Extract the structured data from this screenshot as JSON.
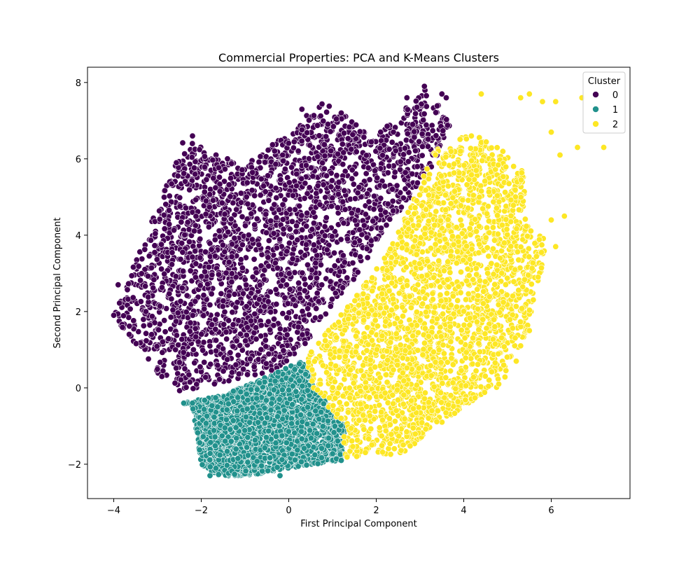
{
  "chart_data": {
    "type": "scatter",
    "title": "Commercial Properties: PCA and K-Means Clusters",
    "xlabel": "First Principal Component",
    "ylabel": "Second Principal Component",
    "xlim": [
      -4.6,
      7.8
    ],
    "ylim": [
      -2.9,
      8.4
    ],
    "xticks": [
      -4,
      -2,
      0,
      2,
      4,
      6
    ],
    "xtick_labels": [
      "−4",
      "−2",
      "0",
      "2",
      "4",
      "6"
    ],
    "yticks": [
      -2,
      0,
      2,
      4,
      6,
      8
    ],
    "ytick_labels": [
      "−2",
      "0",
      "2",
      "4",
      "6",
      "8"
    ],
    "grid": false,
    "legend": {
      "title": "Cluster",
      "placement": "top-right",
      "entries": [
        "0",
        "1",
        "2"
      ]
    },
    "colors": {
      "cluster_0": "#440154",
      "cluster_1": "#21918c",
      "cluster_2": "#fde725",
      "marker_edge": "#ffffff",
      "axes": "#000000"
    },
    "series": [
      {
        "name": "0",
        "color": "#440154",
        "region": [
          [
            -4.0,
            1.9
          ],
          [
            -3.0,
            4.8
          ],
          [
            -2.4,
            6.5
          ],
          [
            -1.0,
            5.8
          ],
          [
            0.8,
            7.5
          ],
          [
            2.0,
            6.6
          ],
          [
            3.2,
            7.9
          ],
          [
            3.7,
            6.9
          ],
          [
            3.2,
            5.6
          ],
          [
            2.5,
            4.6
          ],
          [
            1.6,
            3.0
          ],
          [
            0.6,
            1.5
          ],
          [
            0.2,
            0.7
          ],
          [
            -0.5,
            0.4
          ],
          [
            -2.5,
            -0.1
          ],
          [
            -3.0,
            0.3
          ]
        ],
        "outliers": [
          [
            -2.2,
            6.6
          ],
          [
            -1.4,
            6.0
          ],
          [
            0.3,
            7.3
          ],
          [
            1.2,
            7.2
          ],
          [
            2.1,
            6.7
          ],
          [
            2.7,
            7.6
          ],
          [
            3.1,
            7.9
          ],
          [
            3.5,
            7.7
          ],
          [
            3.6,
            7.6
          ],
          [
            -4.0,
            1.9
          ],
          [
            -3.9,
            2.7
          ],
          [
            -2.9,
            0.3
          ]
        ]
      },
      {
        "name": "1",
        "color": "#21918c",
        "region": [
          [
            -2.5,
            -0.4
          ],
          [
            -2.2,
            -0.5
          ],
          [
            -2.0,
            -2.0
          ],
          [
            -1.6,
            -2.3
          ],
          [
            -0.9,
            -2.3
          ],
          [
            0.0,
            -2.1
          ],
          [
            1.2,
            -1.9
          ],
          [
            1.3,
            -1.0
          ],
          [
            0.8,
            -0.3
          ],
          [
            0.3,
            0.7
          ],
          [
            -0.3,
            0.4
          ],
          [
            -1.5,
            -0.2
          ]
        ],
        "outliers": [
          [
            -2.4,
            -0.4
          ],
          [
            -2.2,
            -0.4
          ],
          [
            -1.8,
            -2.3
          ],
          [
            -0.2,
            -2.3
          ],
          [
            1.2,
            -1.9
          ]
        ]
      },
      {
        "name": "2",
        "color": "#fde725",
        "region": [
          [
            0.4,
            0.8
          ],
          [
            1.4,
            2.2
          ],
          [
            2.3,
            3.6
          ],
          [
            2.9,
            5.1
          ],
          [
            3.3,
            6.2
          ],
          [
            4.2,
            6.7
          ],
          [
            4.9,
            6.2
          ],
          [
            5.4,
            5.6
          ],
          [
            5.4,
            4.6
          ],
          [
            5.9,
            3.8
          ],
          [
            5.5,
            1.6
          ],
          [
            4.9,
            0.1
          ],
          [
            4.0,
            -0.5
          ],
          [
            2.6,
            -1.7
          ],
          [
            1.3,
            -1.9
          ],
          [
            1.2,
            -0.9
          ],
          [
            0.6,
            -0.2
          ]
        ],
        "outliers": [
          [
            4.4,
            7.7
          ],
          [
            5.3,
            7.6
          ],
          [
            5.5,
            7.7
          ],
          [
            5.8,
            7.5
          ],
          [
            6.1,
            7.5
          ],
          [
            6.7,
            7.6
          ],
          [
            7.2,
            6.3
          ],
          [
            6.6,
            6.3
          ],
          [
            6.2,
            6.1
          ],
          [
            6.0,
            6.7
          ],
          [
            6.0,
            4.4
          ],
          [
            6.3,
            4.5
          ],
          [
            6.1,
            3.7
          ],
          [
            5.7,
            2.9
          ],
          [
            5.2,
            0.7
          ],
          [
            5.3,
            1.1
          ],
          [
            4.8,
            0.1
          ],
          [
            5.5,
            1.5
          ]
        ]
      }
    ]
  }
}
